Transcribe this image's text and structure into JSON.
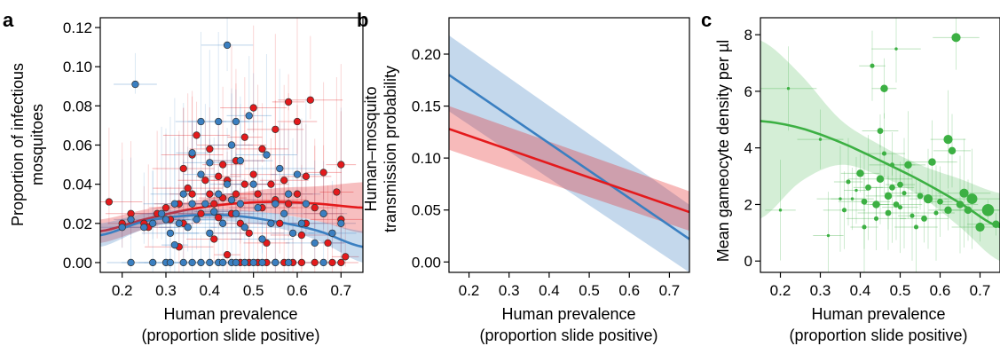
{
  "chart_data": [
    {
      "panel_label": "a",
      "type": "scatter",
      "xlabel_line1": "Human prevalence",
      "xlabel_line2": "(proportion slide positive)",
      "ylabel_line1": "Proportion of infectious",
      "ylabel_line2": "mosquitoes",
      "xlim": [
        0.15,
        0.75
      ],
      "ylim": [
        -0.005,
        0.125
      ],
      "x_ticks": [
        0.2,
        0.3,
        0.4,
        0.5,
        0.6,
        0.7
      ],
      "x_tick_labels": [
        "0.2",
        "0.3",
        "0.4",
        "0.5",
        "0.6",
        "0.7"
      ],
      "y_ticks": [
        0,
        0.02,
        0.04,
        0.06,
        0.08,
        0.1,
        0.12
      ],
      "y_tick_labels": [
        "0.00",
        "0.02",
        "0.04",
        "0.06",
        "0.08",
        "0.10",
        "0.12"
      ],
      "grid": false,
      "series": [
        {
          "color": "#e41a1c",
          "points": [
            [
              0.17,
              0.031
            ],
            [
              0.2,
              0.02
            ],
            [
              0.22,
              0.025
            ],
            [
              0.25,
              0.02
            ],
            [
              0.26,
              0.018
            ],
            [
              0.28,
              0.025
            ],
            [
              0.3,
              0.028
            ],
            [
              0.31,
              0.022
            ],
            [
              0.33,
              0.03
            ],
            [
              0.33,
              0.008
            ],
            [
              0.34,
              0.048
            ],
            [
              0.34,
              0.02
            ],
            [
              0.35,
              0.038
            ],
            [
              0.36,
              0.055
            ],
            [
              0.36,
              0.035
            ],
            [
              0.37,
              0.065
            ],
            [
              0.38,
              0.025
            ],
            [
              0.39,
              0.042
            ],
            [
              0.4,
              0.058
            ],
            [
              0.4,
              0.035
            ],
            [
              0.41,
              0.03
            ],
            [
              0.41,
              0.012
            ],
            [
              0.42,
              0.044
            ],
            [
              0.42,
              0.023
            ],
            [
              0.43,
              0.05
            ],
            [
              0.43,
              0.033
            ],
            [
              0.44,
              0.004
            ],
            [
              0.44,
              0.042
            ],
            [
              0.45,
              0.025
            ],
            [
              0.45,
              0.06
            ],
            [
              0.46,
              0.052
            ],
            [
              0.46,
              0.035
            ],
            [
              0.47,
              0.02
            ],
            [
              0.48,
              0.064
            ],
            [
              0.48,
              0.04
            ],
            [
              0.49,
              0.015
            ],
            [
              0.5,
              0.079
            ],
            [
              0.5,
              0.045
            ],
            [
              0.51,
              0.035
            ],
            [
              0.52,
              0.058
            ],
            [
              0.52,
              0.028
            ],
            [
              0.53,
              0.01
            ],
            [
              0.54,
              0.04
            ],
            [
              0.55,
              0.068
            ],
            [
              0.55,
              0.032
            ],
            [
              0.56,
              0.02
            ],
            [
              0.57,
              0.042
            ],
            [
              0.58,
              0.082
            ],
            [
              0.58,
              0.03
            ],
            [
              0.6,
              0.072
            ],
            [
              0.6,
              0.035
            ],
            [
              0.61,
              0.014
            ],
            [
              0.62,
              0.044
            ],
            [
              0.62,
              0.02
            ],
            [
              0.63,
              0.083
            ],
            [
              0.64,
              0.028
            ],
            [
              0.66,
              0.046
            ],
            [
              0.66,
              0.025
            ],
            [
              0.67,
              0.01
            ],
            [
              0.69,
              0.036
            ],
            [
              0.7,
              0.05
            ],
            [
              0.7,
              0.022
            ],
            [
              0.71,
              0.003
            ],
            [
              0.47,
              0
            ],
            [
              0.49,
              0
            ],
            [
              0.51,
              0
            ],
            [
              0.53,
              0
            ],
            [
              0.55,
              0
            ],
            [
              0.57,
              0
            ],
            [
              0.59,
              0
            ],
            [
              0.61,
              0
            ],
            [
              0.64,
              0
            ],
            [
              0.68,
              0
            ],
            [
              0.7,
              0
            ]
          ]
        },
        {
          "color": "#3a7fc1",
          "points": [
            [
              0.2,
              0.018
            ],
            [
              0.22,
              0.022
            ],
            [
              0.23,
              0.091
            ],
            [
              0.25,
              0.018
            ],
            [
              0.27,
              0.02
            ],
            [
              0.29,
              0.025
            ],
            [
              0.3,
              0.022
            ],
            [
              0.31,
              0.015
            ],
            [
              0.32,
              0.03
            ],
            [
              0.32,
              0.009
            ],
            [
              0.33,
              0.02
            ],
            [
              0.34,
              0.035
            ],
            [
              0.35,
              0.018
            ],
            [
              0.36,
              0.03
            ],
            [
              0.36,
              0.056
            ],
            [
              0.37,
              0.022
            ],
            [
              0.38,
              0.045
            ],
            [
              0.38,
              0.072
            ],
            [
              0.39,
              0.03
            ],
            [
              0.4,
              0.015
            ],
            [
              0.4,
              0.051
            ],
            [
              0.41,
              0.026
            ],
            [
              0.42,
              0.072
            ],
            [
              0.42,
              0.035
            ],
            [
              0.43,
              0.02
            ],
            [
              0.44,
              0.111
            ],
            [
              0.44,
              0.04
            ],
            [
              0.45,
              0.032
            ],
            [
              0.45,
              0.06
            ],
            [
              0.46,
              0.025
            ],
            [
              0.46,
              0.072
            ],
            [
              0.47,
              0.03
            ],
            [
              0.47,
              0.052
            ],
            [
              0.48,
              0.018
            ],
            [
              0.49,
              0.075
            ],
            [
              0.5,
              0.04
            ],
            [
              0.51,
              0.028
            ],
            [
              0.52,
              0.012
            ],
            [
              0.53,
              0.055
            ],
            [
              0.54,
              0.02
            ],
            [
              0.55,
              0.03
            ],
            [
              0.56,
              0.048
            ],
            [
              0.57,
              0.025
            ],
            [
              0.58,
              0.035
            ],
            [
              0.59,
              0.015
            ],
            [
              0.6,
              0.045
            ],
            [
              0.61,
              0.02
            ],
            [
              0.62,
              0.03
            ],
            [
              0.64,
              0.01
            ],
            [
              0.66,
              0.025
            ],
            [
              0.68,
              0.015
            ],
            [
              0.7,
              0.02
            ],
            [
              0.22,
              0
            ],
            [
              0.27,
              0
            ],
            [
              0.3,
              0
            ],
            [
              0.31,
              0
            ],
            [
              0.34,
              0
            ],
            [
              0.36,
              0
            ],
            [
              0.38,
              0
            ],
            [
              0.4,
              0
            ],
            [
              0.42,
              0
            ],
            [
              0.43,
              0
            ],
            [
              0.45,
              0
            ],
            [
              0.46,
              0
            ],
            [
              0.48,
              0
            ],
            [
              0.5,
              0
            ],
            [
              0.52,
              0
            ],
            [
              0.55,
              0
            ],
            [
              0.58,
              0
            ],
            [
              0.66,
              0
            ]
          ]
        }
      ],
      "fit_curves": [
        {
          "color": "#e41a1c",
          "x": [
            0.15,
            0.25,
            0.35,
            0.45,
            0.55,
            0.65,
            0.75
          ],
          "y": [
            0.016,
            0.022,
            0.027,
            0.03,
            0.031,
            0.03,
            0.028
          ],
          "band_lower": [
            0.01,
            0.017,
            0.023,
            0.026,
            0.025,
            0.021,
            0.015
          ],
          "band_upper": [
            0.022,
            0.027,
            0.031,
            0.035,
            0.038,
            0.039,
            0.041
          ]
        },
        {
          "color": "#3a7fc1",
          "x": [
            0.15,
            0.25,
            0.35,
            0.45,
            0.55,
            0.65,
            0.75
          ],
          "y": [
            0.014,
            0.021,
            0.024,
            0.024,
            0.021,
            0.016,
            0.008
          ],
          "band_lower": [
            0.008,
            0.017,
            0.021,
            0.021,
            0.018,
            0.011,
            0.0
          ],
          "band_upper": [
            0.02,
            0.025,
            0.027,
            0.027,
            0.025,
            0.021,
            0.016
          ]
        }
      ]
    },
    {
      "panel_label": "b",
      "type": "line",
      "xlabel_line1": "Human prevalence",
      "xlabel_line2": "(proportion slide positive)",
      "ylabel_line1": "Human–mosquito",
      "ylabel_line2": "transmission probability",
      "xlim": [
        0.15,
        0.75
      ],
      "ylim": [
        -0.01,
        0.235
      ],
      "x_ticks": [
        0.2,
        0.3,
        0.4,
        0.5,
        0.6,
        0.7
      ],
      "x_tick_labels": [
        "0.2",
        "0.3",
        "0.4",
        "0.5",
        "0.6",
        "0.7"
      ],
      "y_ticks": [
        0,
        0.05,
        0.1,
        0.15,
        0.2
      ],
      "y_tick_labels": [
        "0.00",
        "0.05",
        "0.10",
        "0.15",
        "0.20"
      ],
      "grid": false,
      "series": [
        {
          "color": "#3a7fc1",
          "x": [
            0.15,
            0.75
          ],
          "y": [
            0.18,
            0.022
          ],
          "band_lower": [
            0.145,
            -0.01
          ],
          "band_upper": [
            0.218,
            0.055
          ]
        },
        {
          "color": "#e41a1c",
          "x": [
            0.15,
            0.75
          ],
          "y": [
            0.128,
            0.048
          ],
          "band_lower": [
            0.108,
            0.03
          ],
          "band_upper": [
            0.15,
            0.068
          ]
        }
      ]
    },
    {
      "panel_label": "c",
      "type": "scatter",
      "xlabel_line1": "Human prevalence",
      "xlabel_line2": "(proportion slide positive)",
      "ylabel_line1": "Mean gameocyte density per µl",
      "xlim": [
        0.15,
        0.75
      ],
      "ylim": [
        -0.4,
        8.6
      ],
      "x_ticks": [
        0.2,
        0.3,
        0.4,
        0.5,
        0.6,
        0.7
      ],
      "x_tick_labels": [
        "0.2",
        "0.3",
        "0.4",
        "0.5",
        "0.6",
        "0.7"
      ],
      "y_ticks": [
        0,
        2,
        4,
        6,
        8
      ],
      "y_tick_labels": [
        "0",
        "2",
        "4",
        "6",
        "8"
      ],
      "grid": false,
      "series": [
        {
          "color": "#3cb043",
          "points": [
            [
              0.2,
              1.8,
              2
            ],
            [
              0.22,
              6.1,
              2
            ],
            [
              0.3,
              4.3,
              2
            ],
            [
              0.32,
              0.9,
              2
            ],
            [
              0.35,
              2.2,
              2
            ],
            [
              0.36,
              1.8,
              3
            ],
            [
              0.37,
              2.8,
              3
            ],
            [
              0.38,
              2.2,
              2
            ],
            [
              0.39,
              2.5,
              2
            ],
            [
              0.4,
              3.1,
              5
            ],
            [
              0.41,
              2.1,
              4
            ],
            [
              0.41,
              1.2,
              3
            ],
            [
              0.42,
              2.6,
              4
            ],
            [
              0.43,
              6.9,
              3
            ],
            [
              0.44,
              1.5,
              3
            ],
            [
              0.44,
              2.0,
              5
            ],
            [
              0.45,
              2.9,
              5
            ],
            [
              0.45,
              4.6,
              4
            ],
            [
              0.46,
              6.1,
              5
            ],
            [
              0.46,
              3.8,
              3
            ],
            [
              0.47,
              1.7,
              4
            ],
            [
              0.47,
              2.3,
              5
            ],
            [
              0.48,
              3.4,
              3
            ],
            [
              0.48,
              2.6,
              4
            ],
            [
              0.49,
              7.5,
              2
            ],
            [
              0.49,
              2.0,
              4
            ],
            [
              0.5,
              2.7,
              4
            ],
            [
              0.5,
              1.9,
              3
            ],
            [
              0.51,
              2.4,
              3
            ],
            [
              0.52,
              3.4,
              5
            ],
            [
              0.53,
              1.6,
              3
            ],
            [
              0.54,
              1.2,
              3
            ],
            [
              0.55,
              2.3,
              4
            ],
            [
              0.56,
              1.5,
              4
            ],
            [
              0.57,
              2.2,
              6
            ],
            [
              0.58,
              3.5,
              5
            ],
            [
              0.59,
              1.7,
              3
            ],
            [
              0.6,
              2.1,
              4
            ],
            [
              0.62,
              4.3,
              6
            ],
            [
              0.62,
              1.8,
              5
            ],
            [
              0.63,
              3.9,
              5
            ],
            [
              0.64,
              7.9,
              6
            ],
            [
              0.65,
              2.0,
              5
            ],
            [
              0.66,
              2.4,
              6
            ],
            [
              0.67,
              1.8,
              5
            ],
            [
              0.68,
              2.2,
              7
            ],
            [
              0.7,
              1.2,
              6
            ],
            [
              0.72,
              1.8,
              8
            ],
            [
              0.74,
              1.3,
              5
            ]
          ]
        }
      ],
      "fit_curves": [
        {
          "color": "#3cb043",
          "x": [
            0.15,
            0.25,
            0.35,
            0.45,
            0.55,
            0.65,
            0.75
          ],
          "y": [
            4.95,
            4.7,
            4.2,
            3.55,
            2.85,
            2.05,
            1.2
          ],
          "band_lower": [
            1.5,
            2.8,
            3.4,
            3.0,
            2.3,
            1.2,
            0.0
          ],
          "band_upper": [
            7.8,
            6.6,
            5.0,
            4.1,
            3.4,
            2.9,
            2.4
          ]
        }
      ]
    }
  ]
}
